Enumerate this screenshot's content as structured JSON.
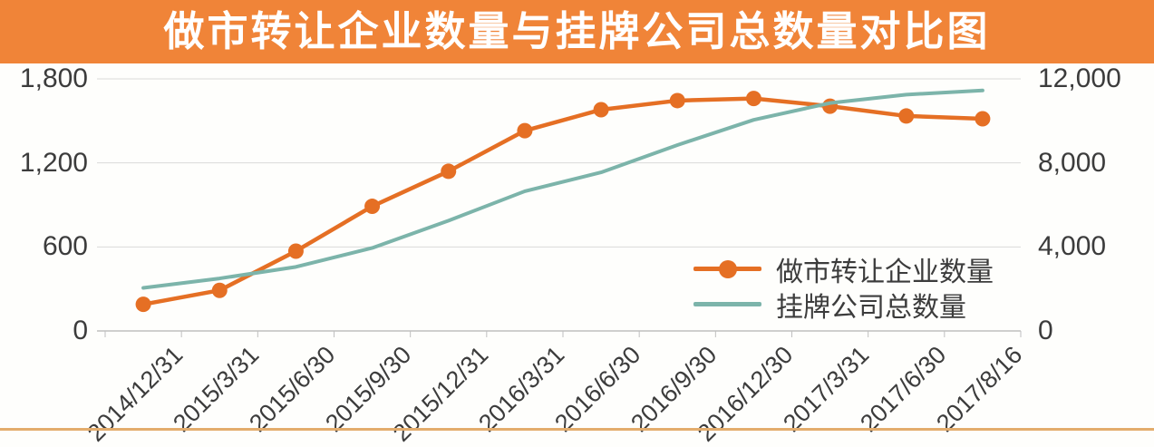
{
  "title": "做市转让企业数量与挂牌公司总数量对比图",
  "colors": {
    "banner": "#F08438",
    "series1": "#E56F24",
    "series2": "#7CB4AA",
    "grid": "#D9D9D9",
    "axis": "#BFBFBF",
    "text": "#3C3C3C",
    "title_text": "#FFFFFF",
    "bottom_rule": "#E3AC6C",
    "background": "#FEFEFC"
  },
  "chart_data": {
    "type": "line",
    "title": "做市转让企业数量与挂牌公司总数量对比图",
    "categories": [
      "2014/12/31",
      "2015/3/31",
      "2015/6/30",
      "2015/9/30",
      "2015/12/31",
      "2016/3/31",
      "2016/6/30",
      "2016/9/30",
      "2016/12/30",
      "2017/3/31",
      "2017/6/30",
      "2017/8/16"
    ],
    "series": [
      {
        "name": "做市转让企业数量",
        "axis": "left",
        "color": "#E56F24",
        "marker": "circle",
        "values": [
          190,
          290,
          570,
          890,
          1140,
          1430,
          1580,
          1645,
          1660,
          1605,
          1535,
          1515
        ]
      },
      {
        "name": "挂牌公司总数量",
        "axis": "right",
        "color": "#7CB4AA",
        "marker": "none",
        "values": [
          2050,
          2500,
          3050,
          3950,
          5250,
          6650,
          7550,
          8850,
          10050,
          10850,
          11250,
          11450
        ]
      }
    ],
    "left_axis": {
      "ticks": [
        "0",
        "600",
        "1,200",
        "1,800"
      ],
      "values": [
        0,
        600,
        1200,
        1800
      ],
      "range": [
        0,
        1800
      ]
    },
    "right_axis": {
      "ticks": [
        "0",
        "4,000",
        "8,000",
        "12,000"
      ],
      "values": [
        0,
        4000,
        8000,
        12000
      ],
      "range": [
        0,
        12000
      ]
    },
    "grid": true,
    "legend_position": "inside-right-bottom"
  }
}
